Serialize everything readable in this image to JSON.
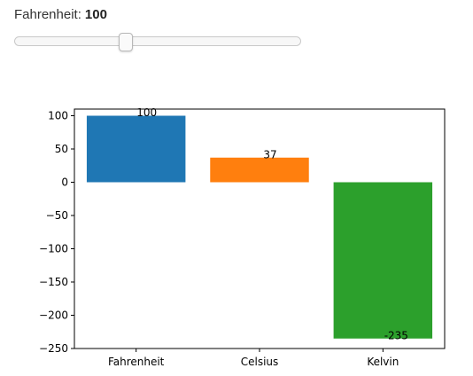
{
  "slider": {
    "label": "Fahrenheit:",
    "value": "100",
    "min": -459,
    "max": 1000,
    "current": 100
  },
  "chart_data": {
    "type": "bar",
    "title": "",
    "xlabel": "",
    "ylabel": "",
    "categories": [
      "Fahrenheit",
      "Celsius",
      "Kelvin"
    ],
    "values": [
      100,
      37,
      -235
    ],
    "data_labels": [
      "100",
      "37",
      "-235"
    ],
    "colors": [
      "#1f77b4",
      "#ff7f0e",
      "#2ca02c"
    ],
    "ylim": [
      -250,
      110
    ],
    "yticks": [
      100,
      50,
      0,
      -50,
      -100,
      -150,
      -200,
      -250
    ],
    "ytick_labels": [
      "100",
      "50",
      "0",
      "−50",
      "−100",
      "−150",
      "−200",
      "−250"
    ],
    "grid": false,
    "legend": "none"
  }
}
